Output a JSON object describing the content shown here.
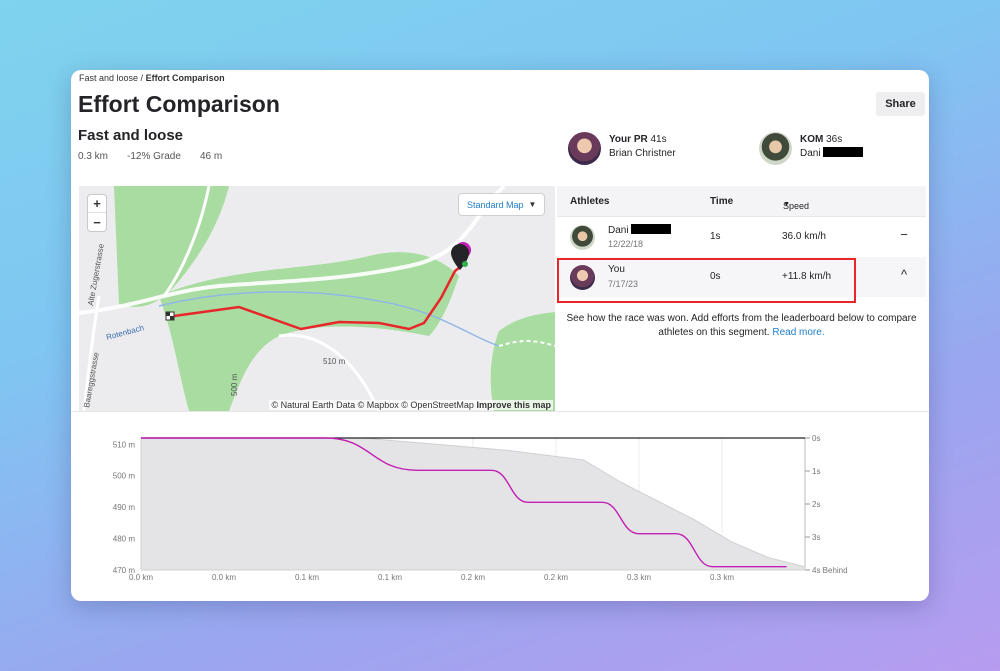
{
  "breadcrumb": {
    "parent": "Fast and loose",
    "separator": " / ",
    "current": "Effort Comparison"
  },
  "page_title": "Effort Comparison",
  "share_label": "Share",
  "segment": {
    "name": "Fast and loose",
    "distance": "0.3 km",
    "grade": "-12% Grade",
    "elevation": "46 m"
  },
  "pr": {
    "label": "Your PR",
    "time": "41s",
    "athlete": "Brian Christner"
  },
  "kom": {
    "label": "KOM",
    "time": "36s",
    "athlete": "Dani"
  },
  "map": {
    "zoom_in": "+",
    "zoom_out": "−",
    "style_label": "Standard Map",
    "attribution": "© Natural Earth Data © Mapbox © OpenStreetMap",
    "improve": "Improve this map",
    "street_labels": [
      "Alte Zugerstrasse",
      "Rotenbach",
      "Baareggstrasse",
      "510 m",
      "500 m"
    ]
  },
  "board": {
    "headers": {
      "athletes": "Athletes",
      "time": "Time",
      "speed": "Speed"
    },
    "rows": [
      {
        "name": "Dani",
        "date": "12/22/18",
        "time": "1s",
        "speed": "36.0 km/h",
        "toggle": "−"
      },
      {
        "name": "You",
        "date": "7/17/23",
        "time": "0s",
        "speed": "+11.8 km/h",
        "toggle": "^"
      }
    ],
    "note": "See how the race was won. Add efforts from the leaderboard below to compare athletes on this segment.",
    "note_link": "Read more."
  },
  "colors": {
    "route": "#e8262a",
    "effort_line": "#c21fb4",
    "accent_link": "#1e7ec8",
    "green": "#a8dca0"
  },
  "chart_data": {
    "type": "line",
    "x_tick_labels": [
      "0.0 km",
      "0.0 km",
      "0.1 km",
      "0.1 km",
      "0.2 km",
      "0.2 km",
      "0.3 km",
      "0.3 km"
    ],
    "y_left_ticks": [
      "510 m",
      "500 m",
      "490 m",
      "480 m",
      "470 m"
    ],
    "y_right_ticks": [
      "0s",
      "1s",
      "2s",
      "3s",
      "4s Behind"
    ],
    "ylim_left": [
      470,
      512
    ],
    "series": [
      {
        "kind": "elevation-area",
        "x": [
          0,
          0.04,
          0.08,
          0.12,
          0.16,
          0.2,
          0.24,
          0.26,
          0.28,
          0.3,
          0.32,
          0.34,
          0.36
        ],
        "y": [
          512,
          512,
          512,
          512,
          510,
          508,
          505,
          498,
          492,
          486,
          479,
          474,
          471
        ]
      },
      {
        "kind": "time-behind",
        "x": [
          0,
          0.06,
          0.1,
          0.15,
          0.19,
          0.21,
          0.25,
          0.27,
          0.29,
          0.31,
          0.34,
          0.35
        ],
        "y": [
          0,
          0,
          0,
          0.98,
          0.98,
          1.95,
          1.95,
          2.9,
          2.9,
          3.9,
          3.9,
          3.9
        ]
      }
    ]
  }
}
